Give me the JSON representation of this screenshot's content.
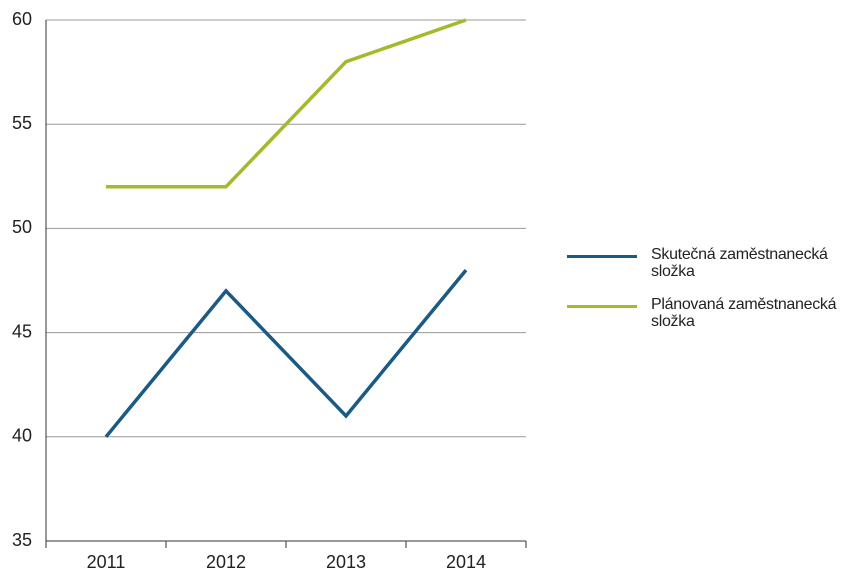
{
  "chart_data": {
    "type": "line",
    "categories": [
      "2011",
      "2012",
      "2013",
      "2014"
    ],
    "series": [
      {
        "name": "Skutečná zaměstnanecká složka",
        "color": "#1a5a85",
        "values": [
          40,
          47,
          41,
          48
        ]
      },
      {
        "name": "Plánovaná zaměstnanecká složka",
        "color": "#a5b92b",
        "values": [
          52,
          52,
          58,
          60
        ]
      }
    ],
    "ylim": [
      35,
      60
    ],
    "yticks": [
      35,
      40,
      45,
      50,
      55,
      60
    ],
    "grid": true,
    "legend": "right"
  }
}
